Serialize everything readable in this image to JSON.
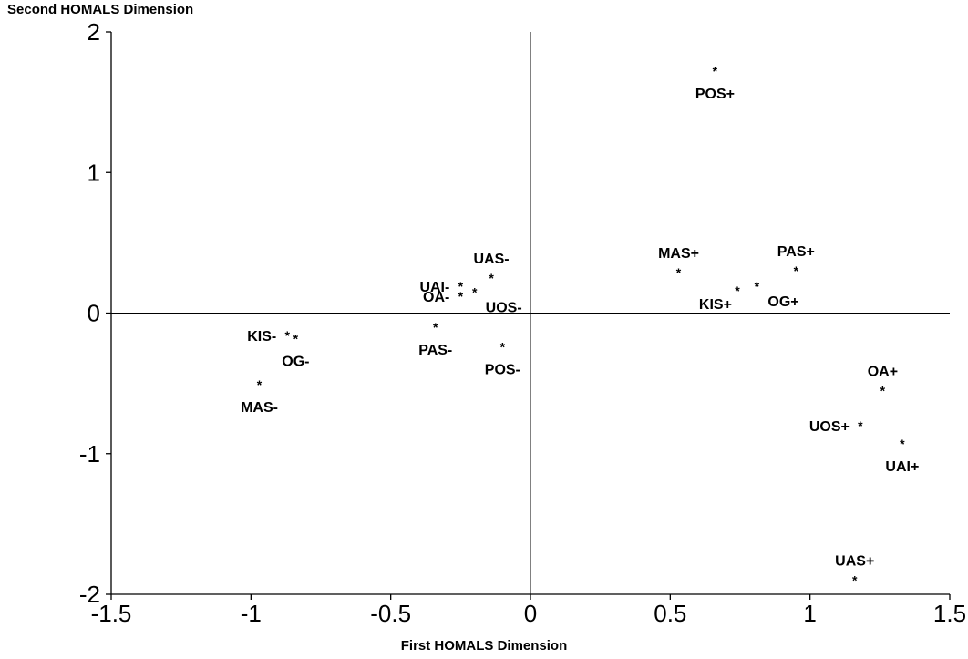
{
  "chart_data": {
    "type": "scatter",
    "title": "",
    "xlabel": "First HOMALS Dimension",
    "ylabel": "Second HOMALS Dimension",
    "xlim": [
      -1.5,
      1.5
    ],
    "ylim": [
      -2,
      2
    ],
    "xticks": [
      -1.5,
      -1,
      -0.5,
      0,
      0.5,
      1,
      1.5
    ],
    "yticks": [
      -2,
      -1,
      0,
      1,
      2
    ],
    "xtick_labels": [
      "-1.5",
      "-1",
      "-0.5",
      "0",
      "0.5",
      "1",
      "1.5"
    ],
    "ytick_labels": [
      "-2",
      "-1",
      "0",
      "1",
      "2"
    ],
    "reference_lines": {
      "x": 0,
      "y": 0
    },
    "grid": false,
    "marker": "*",
    "points": [
      {
        "label": "POS+",
        "x": 0.66,
        "y": 1.72,
        "label_anchor": "below"
      },
      {
        "label": "MAS+",
        "x": 0.53,
        "y": 0.29,
        "label_anchor": "above"
      },
      {
        "label": "PAS+",
        "x": 0.95,
        "y": 0.3,
        "label_anchor": "above"
      },
      {
        "label": "KIS+",
        "x": 0.74,
        "y": 0.16,
        "label_anchor": "below-left"
      },
      {
        "label": "OG+",
        "x": 0.81,
        "y": 0.19,
        "label_anchor": "below-right"
      },
      {
        "label": "OA+",
        "x": 1.26,
        "y": -0.55,
        "label_anchor": "above"
      },
      {
        "label": "UOS+",
        "x": 1.18,
        "y": -0.8,
        "label_anchor": "left"
      },
      {
        "label": "UAI+",
        "x": 1.33,
        "y": -0.93,
        "label_anchor": "below"
      },
      {
        "label": "UAS+",
        "x": 1.16,
        "y": -1.9,
        "label_anchor": "above"
      },
      {
        "label": "UAS-",
        "x": -0.14,
        "y": 0.25,
        "label_anchor": "above"
      },
      {
        "label": "UAI-",
        "x": -0.25,
        "y": 0.19,
        "label_anchor": "left"
      },
      {
        "label": "OA-",
        "x": -0.25,
        "y": 0.12,
        "label_anchor": "left"
      },
      {
        "label": "UOS-",
        "x": -0.2,
        "y": 0.15,
        "label_anchor": "below-right"
      },
      {
        "label": "PAS-",
        "x": -0.34,
        "y": -0.1,
        "label_anchor": "below"
      },
      {
        "label": "POS-",
        "x": -0.1,
        "y": -0.24,
        "label_anchor": "below"
      },
      {
        "label": "KIS-",
        "x": -0.87,
        "y": -0.16,
        "label_anchor": "left"
      },
      {
        "label": "OG-",
        "x": -0.84,
        "y": -0.18,
        "label_anchor": "below"
      },
      {
        "label": "MAS-",
        "x": -0.97,
        "y": -0.51,
        "label_anchor": "below"
      }
    ]
  }
}
